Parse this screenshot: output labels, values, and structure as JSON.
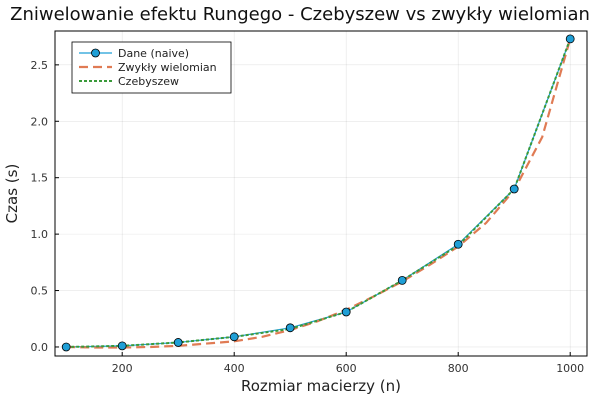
{
  "chart_data": {
    "type": "line",
    "title": "Zniwelowanie efektu Rungego - Czebyszew vs zwykły wielomian",
    "xlabel": "Rozmiar macierzy (n)",
    "ylabel": "Czas (s)",
    "xlim": [
      80,
      1030
    ],
    "ylim": [
      -0.08,
      2.8
    ],
    "x": [
      100,
      200,
      300,
      400,
      500,
      600,
      700,
      800,
      900,
      1000
    ],
    "x_ticks": [
      200,
      400,
      600,
      800,
      1000
    ],
    "y_ticks": [
      0.0,
      0.5,
      1.0,
      1.5,
      2.0,
      2.5
    ],
    "grid": true,
    "legend_position": "top-left",
    "series": [
      {
        "name": "Dane (naive)",
        "style": "solid-markers",
        "color": "#1f9fd6",
        "x": [
          100,
          200,
          300,
          400,
          500,
          600,
          700,
          800,
          900,
          1000
        ],
        "values": [
          0.0,
          0.01,
          0.04,
          0.09,
          0.17,
          0.31,
          0.59,
          0.91,
          1.4,
          2.73
        ]
      },
      {
        "name": "Zwykły wielomian",
        "style": "dashed",
        "color": "#e07b54",
        "x": [
          100,
          150,
          200,
          250,
          300,
          350,
          400,
          450,
          500,
          550,
          600,
          650,
          700,
          750,
          800,
          850,
          900,
          950,
          1000
        ],
        "values": [
          0.0,
          -0.005,
          -0.005,
          0.0,
          0.01,
          0.03,
          0.05,
          0.09,
          0.15,
          0.23,
          0.33,
          0.45,
          0.58,
          0.73,
          0.89,
          1.1,
          1.39,
          1.86,
          2.73
        ]
      },
      {
        "name": "Czebyszew",
        "style": "dotted",
        "color": "#3a9a3a",
        "x": [
          100,
          200,
          300,
          400,
          500,
          600,
          700,
          800,
          900,
          1000
        ],
        "values": [
          0.0,
          0.01,
          0.04,
          0.09,
          0.16,
          0.31,
          0.59,
          0.9,
          1.4,
          2.73
        ]
      }
    ]
  }
}
